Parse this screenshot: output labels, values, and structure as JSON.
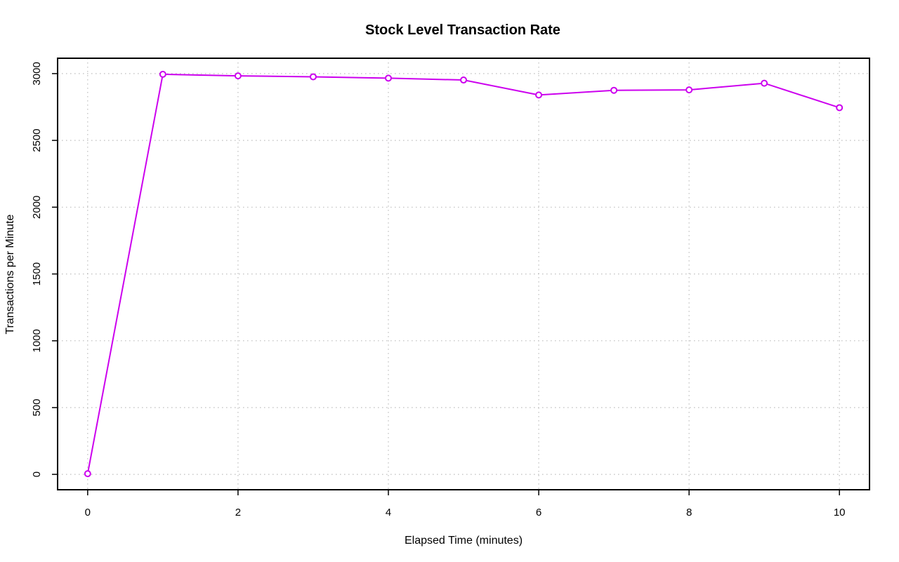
{
  "chart_data": {
    "type": "line",
    "title": "Stock Level Transaction Rate",
    "xlabel": "Elapsed Time (minutes)",
    "ylabel": "Transactions per Minute",
    "xlim": [
      -0.4,
      10.4
    ],
    "ylim": [
      -115,
      3115
    ],
    "xticks": [
      0,
      2,
      4,
      6,
      8,
      10
    ],
    "yticks": [
      0,
      500,
      1000,
      1500,
      2000,
      2500,
      3000
    ],
    "grid": true,
    "x": [
      0,
      1,
      2,
      3,
      4,
      5,
      6,
      7,
      8,
      9,
      10
    ],
    "series": [
      {
        "color": "#cc00ee",
        "values": [
          5,
          2995,
          2983,
          2976,
          2966,
          2952,
          2840,
          2875,
          2878,
          2928,
          2745
        ]
      }
    ]
  }
}
